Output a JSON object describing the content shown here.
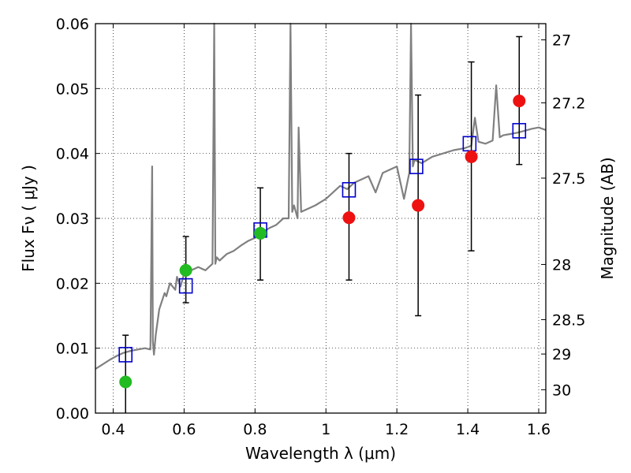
{
  "chart_data": {
    "type": "scatter",
    "xlabel": "Wavelength  λ (μm)",
    "ylabel": "Flux  Fν  ( μJy )",
    "ylabel_right": "Magnitude (AB)",
    "xlim": [
      0.35,
      1.62
    ],
    "ylim": [
      0.0,
      0.06
    ],
    "grid": true,
    "x_ticks": [
      0.4,
      0.6,
      0.8,
      1.0,
      1.2,
      1.4,
      1.6
    ],
    "x_tick_labels": [
      "0.4",
      "0.6",
      "0.8",
      "1",
      "1.2",
      "1.4",
      "1.6"
    ],
    "y_ticks": [
      0.0,
      0.01,
      0.02,
      0.03,
      0.04,
      0.05,
      0.06
    ],
    "y_tick_labels": [
      "0.00",
      "0.01",
      "0.02",
      "0.03",
      "0.04",
      "0.05",
      "0.06"
    ],
    "right_ticks": [
      {
        "label": "27",
        "flux": 0.0575
      },
      {
        "label": "27.2",
        "flux": 0.0478
      },
      {
        "label": "27.5",
        "flux": 0.0362
      },
      {
        "label": "28",
        "flux": 0.0229
      },
      {
        "label": "28.5",
        "flux": 0.0144
      },
      {
        "label": "29",
        "flux": 0.0091
      },
      {
        "label": "30",
        "flux": 0.0036
      }
    ],
    "series": [
      {
        "kind": "spectrum",
        "color": "#808080",
        "x": [
          0.35,
          0.37,
          0.39,
          0.41,
          0.43,
          0.45,
          0.47,
          0.49,
          0.505,
          0.51,
          0.512,
          0.515,
          0.52,
          0.53,
          0.545,
          0.55,
          0.56,
          0.575,
          0.58,
          0.59,
          0.6,
          0.62,
          0.64,
          0.66,
          0.68,
          0.685,
          0.688,
          0.692,
          0.7,
          0.72,
          0.74,
          0.76,
          0.78,
          0.8,
          0.82,
          0.84,
          0.86,
          0.88,
          0.895,
          0.9,
          0.905,
          0.91,
          0.92,
          0.923,
          0.93,
          0.95,
          0.97,
          1.0,
          1.02,
          1.04,
          1.06,
          1.08,
          1.1,
          1.12,
          1.14,
          1.16,
          1.18,
          1.2,
          1.22,
          1.235,
          1.24,
          1.245,
          1.25,
          1.27,
          1.3,
          1.33,
          1.36,
          1.39,
          1.41,
          1.42,
          1.43,
          1.45,
          1.47,
          1.48,
          1.49,
          1.5,
          1.52,
          1.54,
          1.56,
          1.58,
          1.6,
          1.62
        ],
        "values": [
          0.0068,
          0.0075,
          0.0082,
          0.0088,
          0.0093,
          0.0096,
          0.0098,
          0.01,
          0.0098,
          0.038,
          0.011,
          0.009,
          0.012,
          0.016,
          0.0185,
          0.018,
          0.02,
          0.019,
          0.021,
          0.0195,
          0.0215,
          0.022,
          0.0225,
          0.022,
          0.023,
          0.06,
          0.023,
          0.024,
          0.0235,
          0.0245,
          0.025,
          0.0258,
          0.0265,
          0.027,
          0.0278,
          0.0285,
          0.029,
          0.03,
          0.03,
          0.06,
          0.031,
          0.032,
          0.03,
          0.044,
          0.031,
          0.0315,
          0.032,
          0.033,
          0.034,
          0.035,
          0.0345,
          0.0355,
          0.036,
          0.0365,
          0.034,
          0.037,
          0.0375,
          0.038,
          0.033,
          0.037,
          0.06,
          0.038,
          0.039,
          0.0385,
          0.0395,
          0.04,
          0.0405,
          0.0408,
          0.0412,
          0.0455,
          0.0418,
          0.0415,
          0.042,
          0.0505,
          0.0425,
          0.0428,
          0.043,
          0.0432,
          0.0435,
          0.0438,
          0.044,
          0.0436
        ]
      },
      {
        "kind": "model-squares",
        "color": "#0000cc",
        "x": [
          0.435,
          0.605,
          0.815,
          1.065,
          1.255,
          1.405,
          1.545
        ],
        "values": [
          0.009,
          0.0196,
          0.0282,
          0.0344,
          0.038,
          0.0415,
          0.0435
        ]
      },
      {
        "kind": "observed-green",
        "color": "#22bb22",
        "x": [
          0.435,
          0.605,
          0.815
        ],
        "values": [
          0.0048,
          0.022,
          0.0277
        ],
        "errors": [
          [
            0.0,
            0.012
          ],
          [
            0.017,
            0.0272
          ],
          [
            0.0205,
            0.0347
          ]
        ]
      },
      {
        "kind": "observed-red",
        "color": "#ee1111",
        "x": [
          1.065,
          1.26,
          1.41,
          1.545
        ],
        "values": [
          0.0301,
          0.032,
          0.0395,
          0.0481
        ],
        "errors": [
          [
            0.0205,
            0.04
          ],
          [
            0.015,
            0.049
          ],
          [
            0.025,
            0.0541
          ],
          [
            0.0383,
            0.058
          ]
        ]
      }
    ]
  }
}
